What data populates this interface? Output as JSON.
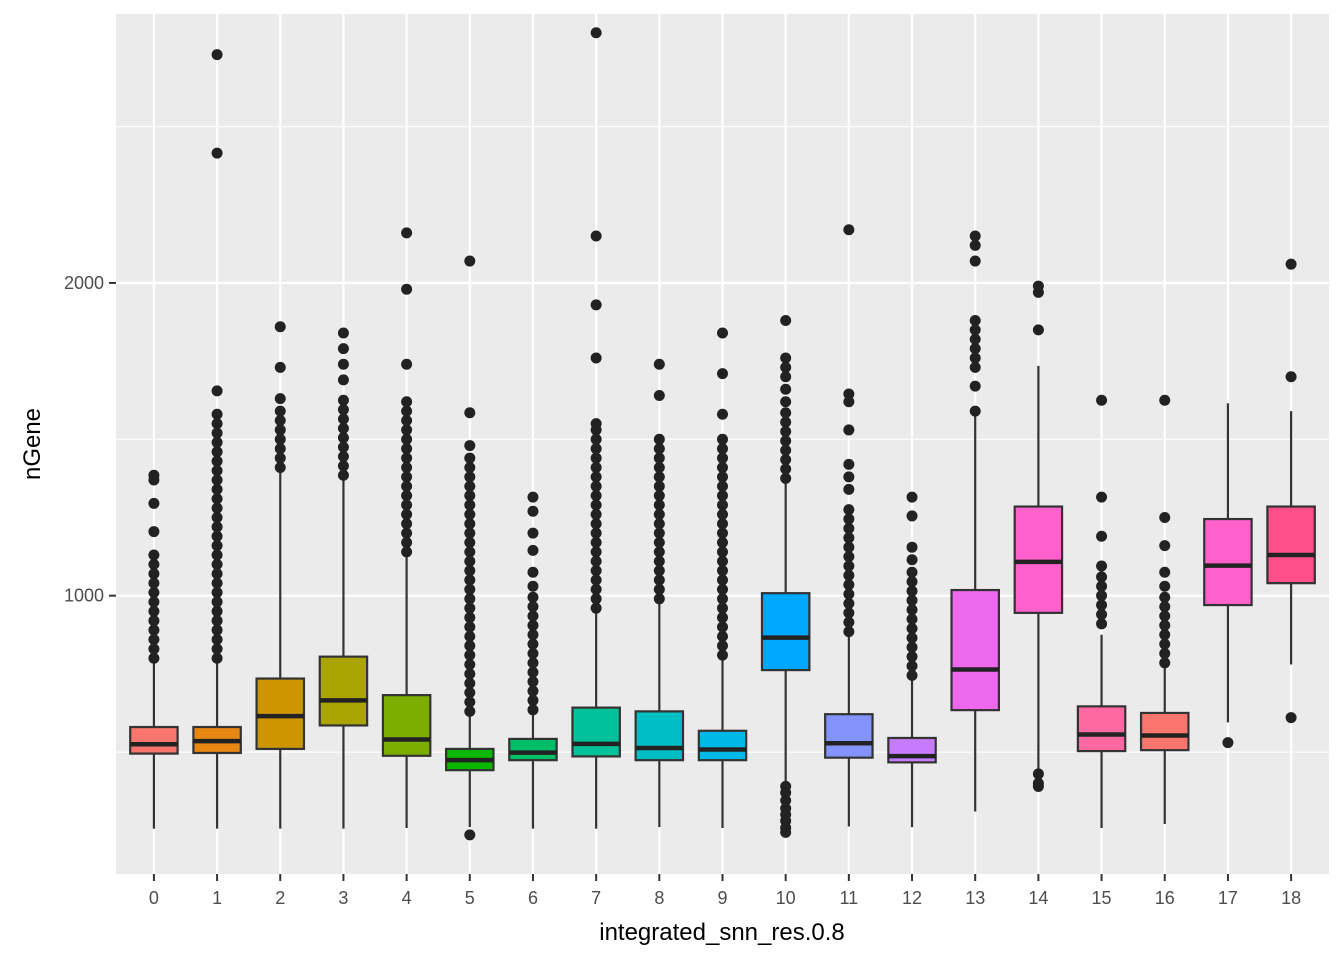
{
  "chart_data": {
    "type": "boxplot",
    "xlabel": "integrated_snn_res.0.8",
    "ylabel": "nGene",
    "ylim": [
      110,
      2860
    ],
    "yticks": [
      1000,
      2000
    ],
    "grid": true,
    "legend": "none",
    "categories": [
      "0",
      "1",
      "2",
      "3",
      "4",
      "5",
      "6",
      "7",
      "8",
      "9",
      "10",
      "11",
      "12",
      "13",
      "14",
      "15",
      "16",
      "17",
      "18"
    ],
    "colors": [
      "#F8766D",
      "#E68613",
      "#CD9600",
      "#ABA300",
      "#7CAE00",
      "#0CB702",
      "#00BE67",
      "#00C19A",
      "#00BFC4",
      "#00B8E7",
      "#00A9FF",
      "#8494FF",
      "#C77CFF",
      "#ED68ED",
      "#FF61CC",
      "#FF68A1",
      "#F8766D",
      "#FF61CC",
      "#FF4F8B"
    ],
    "boxes": [
      {
        "category": "0",
        "q1": 495,
        "median": 525,
        "q3": 580,
        "whisker_low": 255,
        "whisker_high": 790,
        "outliers": [
          800,
          830,
          860,
          890,
          920,
          950,
          980,
          1010,
          1040,
          1070,
          1100,
          1130,
          1205,
          1295,
          1370,
          1385
        ]
      },
      {
        "category": "1",
        "q1": 497,
        "median": 535,
        "q3": 580,
        "whisker_low": 255,
        "whisker_high": 790,
        "outliers": [
          800,
          830,
          860,
          890,
          920,
          950,
          980,
          1010,
          1040,
          1070,
          1100,
          1130,
          1160,
          1190,
          1220,
          1250,
          1280,
          1310,
          1340,
          1370,
          1400,
          1430,
          1460,
          1490,
          1520,
          1550,
          1580,
          1655,
          2415,
          2730
        ]
      },
      {
        "category": "2",
        "q1": 510,
        "median": 615,
        "q3": 735,
        "whisker_low": 255,
        "whisker_high": 1400,
        "outliers": [
          1410,
          1440,
          1470,
          1500,
          1530,
          1560,
          1590,
          1630,
          1730,
          1860
        ]
      },
      {
        "category": "3",
        "q1": 585,
        "median": 665,
        "q3": 805,
        "whisker_low": 255,
        "whisker_high": 1375,
        "outliers": [
          1385,
          1415,
          1445,
          1475,
          1505,
          1535,
          1565,
          1595,
          1625,
          1690,
          1740,
          1790,
          1840
        ]
      },
      {
        "category": "4",
        "q1": 488,
        "median": 540,
        "q3": 682,
        "whisker_low": 257,
        "whisker_high": 1130,
        "outliers": [
          1140,
          1170,
          1200,
          1230,
          1260,
          1290,
          1320,
          1350,
          1380,
          1410,
          1440,
          1470,
          1500,
          1530,
          1560,
          1590,
          1620,
          1740,
          1980,
          2160
        ]
      },
      {
        "category": "5",
        "q1": 442,
        "median": 474,
        "q3": 510,
        "whisker_low": 260,
        "whisker_high": 620,
        "outliers": [
          630,
          660,
          690,
          720,
          750,
          780,
          810,
          840,
          870,
          900,
          930,
          960,
          990,
          1020,
          1050,
          1080,
          1110,
          1140,
          1170,
          1200,
          1230,
          1260,
          1290,
          1320,
          1350,
          1380,
          1410,
          1440,
          1480,
          1585,
          2070,
          235
        ]
      },
      {
        "category": "6",
        "q1": 474,
        "median": 498,
        "q3": 542,
        "whisker_low": 255,
        "whisker_high": 625,
        "outliers": [
          635,
          665,
          695,
          725,
          755,
          785,
          815,
          845,
          875,
          905,
          935,
          965,
          995,
          1030,
          1075,
          1145,
          1200,
          1270,
          1315
        ]
      },
      {
        "category": "7",
        "q1": 486,
        "median": 526,
        "q3": 642,
        "whisker_low": 255,
        "whisker_high": 950,
        "outliers": [
          960,
          990,
          1020,
          1050,
          1080,
          1110,
          1140,
          1170,
          1200,
          1230,
          1260,
          1290,
          1320,
          1350,
          1380,
          1410,
          1440,
          1470,
          1500,
          1530,
          1550,
          1760,
          1930,
          2150,
          2800
        ]
      },
      {
        "category": "8",
        "q1": 474,
        "median": 513,
        "q3": 630,
        "whisker_low": 260,
        "whisker_high": 980,
        "outliers": [
          990,
          1020,
          1050,
          1080,
          1110,
          1140,
          1170,
          1200,
          1230,
          1260,
          1290,
          1320,
          1350,
          1380,
          1410,
          1440,
          1470,
          1500,
          1640,
          1740
        ]
      },
      {
        "category": "9",
        "q1": 474,
        "median": 508,
        "q3": 568,
        "whisker_low": 257,
        "whisker_high": 800,
        "outliers": [
          810,
          840,
          870,
          900,
          930,
          960,
          990,
          1020,
          1050,
          1080,
          1110,
          1140,
          1170,
          1200,
          1230,
          1260,
          1290,
          1320,
          1350,
          1380,
          1410,
          1440,
          1470,
          1500,
          1580,
          1710,
          1840
        ]
      },
      {
        "category": "10",
        "q1": 762,
        "median": 866,
        "q3": 1008,
        "whisker_low": 405,
        "whisker_high": 1365,
        "outliers": [
          1375,
          1405,
          1435,
          1465,
          1495,
          1525,
          1555,
          1585,
          1620,
          1660,
          1700,
          1730,
          1760,
          1880,
          390,
          370,
          345,
          320,
          300,
          280,
          258,
          243
        ]
      },
      {
        "category": "11",
        "q1": 482,
        "median": 528,
        "q3": 621,
        "whisker_low": 262,
        "whisker_high": 875,
        "outliers": [
          885,
          915,
          945,
          975,
          1005,
          1035,
          1065,
          1095,
          1125,
          1155,
          1185,
          1215,
          1245,
          1275,
          1340,
          1380,
          1420,
          1530,
          1620,
          1645,
          2170
        ]
      },
      {
        "category": "12",
        "q1": 467,
        "median": 487,
        "q3": 545,
        "whisker_low": 260,
        "whisker_high": 735,
        "outliers": [
          745,
          775,
          805,
          835,
          865,
          895,
          925,
          955,
          985,
          1015,
          1045,
          1075,
          1115,
          1155,
          1255,
          1315
        ]
      },
      {
        "category": "13",
        "q1": 634,
        "median": 764,
        "q3": 1018,
        "whisker_low": 310,
        "whisker_high": 1580,
        "outliers": [
          1590,
          1670,
          1730,
          1760,
          1790,
          1820,
          1850,
          1880,
          2070,
          2120,
          2150
        ]
      },
      {
        "category": "14",
        "q1": 945,
        "median": 1108,
        "q3": 1285,
        "whisker_low": 440,
        "whisker_high": 1735,
        "outliers": [
          1850,
          1970,
          1990,
          430,
          400,
          390
        ]
      },
      {
        "category": "15",
        "q1": 503,
        "median": 556,
        "q3": 646,
        "whisker_low": 257,
        "whisker_high": 875,
        "outliers": [
          910,
          940,
          970,
          1000,
          1030,
          1060,
          1095,
          1190,
          1315,
          1625
        ]
      },
      {
        "category": "16",
        "q1": 506,
        "median": 553,
        "q3": 625,
        "whisker_low": 270,
        "whisker_high": 775,
        "outliers": [
          785,
          815,
          845,
          875,
          905,
          935,
          965,
          995,
          1030,
          1075,
          1160,
          1250,
          1625
        ]
      },
      {
        "category": "17",
        "q1": 970,
        "median": 1096,
        "q3": 1245,
        "whisker_low": 595,
        "whisker_high": 1615,
        "outliers": [
          530
        ]
      },
      {
        "category": "18",
        "q1": 1040,
        "median": 1130,
        "q3": 1285,
        "whisker_low": 780,
        "whisker_high": 1590,
        "outliers": [
          610,
          1700,
          2060
        ]
      }
    ]
  }
}
